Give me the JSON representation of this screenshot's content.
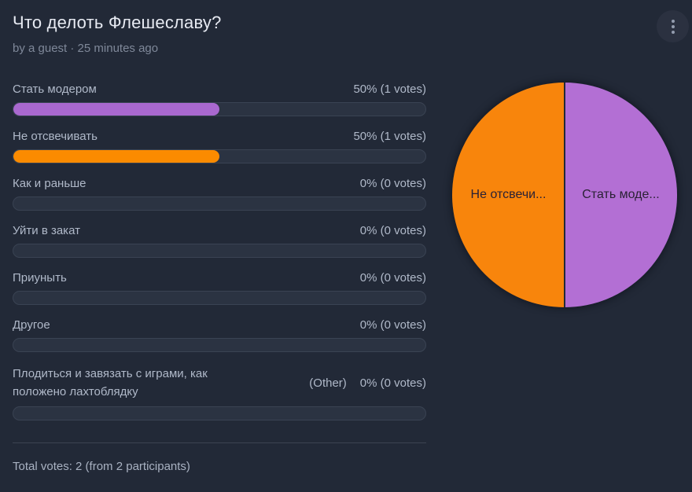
{
  "colors": {
    "background": "#222937",
    "title_text": "#e7eaf2",
    "byline_text": "#7f8899",
    "option_text": "#b0b9c9",
    "bar_track": "#2b3342",
    "bar_track_border": "#3a4353",
    "divider": "#3c4352",
    "purple": "#a968cf",
    "orange": "#fb8b00",
    "pie_purple": "#b36fd4",
    "pie_orange": "#f8850c",
    "pie_label_text": "#2a2135"
  },
  "header": {
    "title": "Что делоть Флешеславу?",
    "byline": "by a guest · 25 minutes ago",
    "menu_icon": "kebab-menu-icon"
  },
  "poll": {
    "options": [
      {
        "label": "Стать модером",
        "stats": "50% (1 votes)",
        "percent": 50,
        "color": "#a968cf"
      },
      {
        "label": "Не отсвечивать",
        "stats": "50% (1 votes)",
        "percent": 50,
        "color": "#fb8b00"
      },
      {
        "label": "Как и раньше",
        "stats": "0% (0 votes)",
        "percent": 0
      },
      {
        "label": "Уйти в закат",
        "stats": "0% (0 votes)",
        "percent": 0
      },
      {
        "label": "Приуныть",
        "stats": "0% (0 votes)",
        "percent": 0
      },
      {
        "label": "Другое",
        "stats": "0% (0 votes)",
        "percent": 0
      },
      {
        "label": "Плодиться и завязать с играми, как положено лахтоблядку",
        "other_tag": "(Other)",
        "stats": "0% (0 votes)",
        "percent": 0
      }
    ],
    "total": "Total votes: 2 (from 2 participants)"
  },
  "pie": {
    "slices": [
      {
        "label": "Стать моде...",
        "value_pct": 50,
        "color": "#b36fd4",
        "side": "right"
      },
      {
        "label": "Не отсвечи...",
        "value_pct": 50,
        "color": "#f8850c",
        "side": "left"
      }
    ]
  },
  "chart_data": {
    "type": "pie",
    "title": "Что делоть Флешеславу?",
    "categories": [
      "Стать модером",
      "Не отсвечивать",
      "Как и раньше",
      "Уйти в закат",
      "Приуныть",
      "Другое",
      "Плодиться и завязать с играми, как положено лахтоблядку"
    ],
    "values": [
      1,
      1,
      0,
      0,
      0,
      0,
      0
    ],
    "percentages": [
      50,
      50,
      0,
      0,
      0,
      0,
      0
    ],
    "unit": "votes",
    "total_votes": 2,
    "participants": 2,
    "legend_position": "none",
    "slice_colors": [
      "#b36fd4",
      "#f8850c",
      null,
      null,
      null,
      null,
      null
    ]
  }
}
